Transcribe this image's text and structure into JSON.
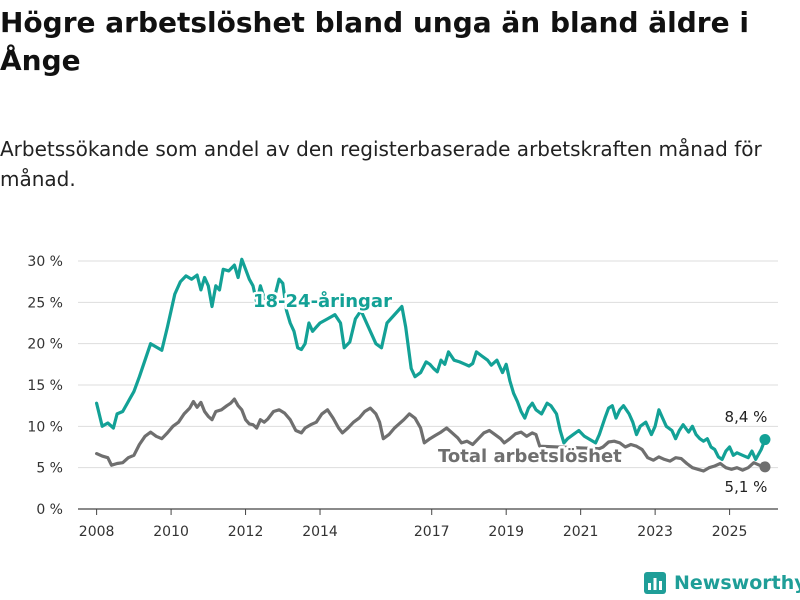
{
  "title": "Högre arbetslöshet bland unga än bland äldre i Ånge",
  "subtitle": "Arbetssökande som andel av den registerbaserade arbetskraften månad för månad.",
  "brand": {
    "name": "Newsworthy",
    "color": "#1f9e98",
    "icon": "bar-chart-logo-icon"
  },
  "chart_data": {
    "type": "line",
    "ylim": [
      0,
      30
    ],
    "xlim": [
      2007.5,
      2026.3
    ],
    "y_ticks": [
      0,
      5,
      10,
      15,
      20,
      25,
      30
    ],
    "y_tick_labels": [
      "0 %",
      "5 %",
      "10 %",
      "15 %",
      "20 %",
      "25 %",
      "30 %"
    ],
    "x_ticks": [
      2008,
      2010,
      2012,
      2014,
      2017,
      2019,
      2021,
      2023,
      2025
    ],
    "x_tick_labels": [
      "2008",
      "2010",
      "2012",
      "2014",
      "2017",
      "2019",
      "2021",
      "2023",
      "2025"
    ],
    "grid": true,
    "series": [
      {
        "name": "18-24-åringar",
        "color": "#13a196",
        "end_label": "8,4 %",
        "points": [
          [
            2008.0,
            12.8
          ],
          [
            2008.15,
            10.0
          ],
          [
            2008.3,
            10.4
          ],
          [
            2008.45,
            9.8
          ],
          [
            2008.55,
            11.5
          ],
          [
            2008.7,
            11.8
          ],
          [
            2008.85,
            13.0
          ],
          [
            2009.0,
            14.2
          ],
          [
            2009.15,
            16.0
          ],
          [
            2009.3,
            18.0
          ],
          [
            2009.45,
            20.0
          ],
          [
            2009.6,
            19.6
          ],
          [
            2009.75,
            19.2
          ],
          [
            2009.9,
            22.0
          ],
          [
            2010.0,
            24.0
          ],
          [
            2010.1,
            26.0
          ],
          [
            2010.25,
            27.5
          ],
          [
            2010.4,
            28.2
          ],
          [
            2010.55,
            27.8
          ],
          [
            2010.7,
            28.3
          ],
          [
            2010.8,
            26.5
          ],
          [
            2010.9,
            28.0
          ],
          [
            2011.0,
            27.0
          ],
          [
            2011.1,
            24.5
          ],
          [
            2011.2,
            27.0
          ],
          [
            2011.3,
            26.5
          ],
          [
            2011.4,
            29.0
          ],
          [
            2011.55,
            28.8
          ],
          [
            2011.7,
            29.5
          ],
          [
            2011.8,
            28.0
          ],
          [
            2011.9,
            30.2
          ],
          [
            2012.0,
            29.0
          ],
          [
            2012.1,
            27.8
          ],
          [
            2012.2,
            27.0
          ],
          [
            2012.3,
            25.0
          ],
          [
            2012.4,
            27.0
          ],
          [
            2012.5,
            25.5
          ],
          [
            2012.6,
            25.7
          ],
          [
            2012.7,
            25.2
          ],
          [
            2012.8,
            26.0
          ],
          [
            2012.9,
            27.8
          ],
          [
            2013.0,
            27.3
          ],
          [
            2013.1,
            24.0
          ],
          [
            2013.2,
            22.5
          ],
          [
            2013.3,
            21.5
          ],
          [
            2013.4,
            19.5
          ],
          [
            2013.5,
            19.3
          ],
          [
            2013.6,
            20.0
          ],
          [
            2013.7,
            22.5
          ],
          [
            2013.8,
            21.5
          ],
          [
            2013.9,
            22.0
          ],
          [
            2014.0,
            22.5
          ],
          [
            2014.2,
            23.0
          ],
          [
            2014.4,
            23.5
          ],
          [
            2014.55,
            22.5
          ],
          [
            2014.65,
            19.5
          ],
          [
            2014.8,
            20.2
          ],
          [
            2014.95,
            23.0
          ],
          [
            2015.1,
            24.0
          ],
          [
            2015.5,
            20.0
          ],
          [
            2015.65,
            19.5
          ],
          [
            2015.8,
            22.5
          ],
          [
            2016.2,
            24.5
          ],
          [
            2016.3,
            22.0
          ],
          [
            2016.45,
            17.0
          ],
          [
            2016.55,
            16.0
          ],
          [
            2016.7,
            16.5
          ],
          [
            2016.85,
            17.8
          ],
          [
            2016.95,
            17.5
          ],
          [
            2017.05,
            17.0
          ],
          [
            2017.15,
            16.6
          ],
          [
            2017.25,
            18.0
          ],
          [
            2017.35,
            17.5
          ],
          [
            2017.45,
            19.0
          ],
          [
            2017.6,
            18.0
          ],
          [
            2017.75,
            17.8
          ],
          [
            2017.9,
            17.5
          ],
          [
            2018.0,
            17.3
          ],
          [
            2018.1,
            17.6
          ],
          [
            2018.2,
            19.0
          ],
          [
            2018.35,
            18.5
          ],
          [
            2018.5,
            18.0
          ],
          [
            2018.6,
            17.4
          ],
          [
            2018.75,
            18.0
          ],
          [
            2018.9,
            16.5
          ],
          [
            2019.0,
            17.5
          ],
          [
            2019.1,
            15.5
          ],
          [
            2019.2,
            14.0
          ],
          [
            2019.3,
            13.0
          ],
          [
            2019.4,
            11.8
          ],
          [
            2019.5,
            11.0
          ],
          [
            2019.6,
            12.2
          ],
          [
            2019.7,
            12.8
          ],
          [
            2019.8,
            12.0
          ],
          [
            2019.95,
            11.5
          ],
          [
            2020.1,
            12.8
          ],
          [
            2020.2,
            12.5
          ],
          [
            2020.35,
            11.5
          ],
          [
            2020.45,
            9.5
          ],
          [
            2020.55,
            8.0
          ],
          [
            2020.65,
            8.5
          ],
          [
            2020.8,
            9.0
          ],
          [
            2020.95,
            9.5
          ],
          [
            2021.1,
            8.8
          ],
          [
            2021.4,
            8.0
          ],
          [
            2021.5,
            9.0
          ],
          [
            2021.65,
            11.0
          ],
          [
            2021.75,
            12.2
          ],
          [
            2021.85,
            12.5
          ],
          [
            2021.95,
            11.0
          ],
          [
            2022.05,
            12.0
          ],
          [
            2022.15,
            12.5
          ],
          [
            2022.3,
            11.5
          ],
          [
            2022.4,
            10.5
          ],
          [
            2022.5,
            9.0
          ],
          [
            2022.6,
            10.0
          ],
          [
            2022.75,
            10.5
          ],
          [
            2022.9,
            9.0
          ],
          [
            2023.0,
            10.0
          ],
          [
            2023.1,
            12.0
          ],
          [
            2023.2,
            11.0
          ],
          [
            2023.3,
            10.0
          ],
          [
            2023.45,
            9.5
          ],
          [
            2023.55,
            8.5
          ],
          [
            2023.65,
            9.5
          ],
          [
            2023.75,
            10.2
          ],
          [
            2023.9,
            9.3
          ],
          [
            2024.0,
            10.0
          ],
          [
            2024.1,
            9.0
          ],
          [
            2024.2,
            8.5
          ],
          [
            2024.3,
            8.2
          ],
          [
            2024.4,
            8.5
          ],
          [
            2024.5,
            7.5
          ],
          [
            2024.6,
            7.2
          ],
          [
            2024.7,
            6.3
          ],
          [
            2024.8,
            6.0
          ],
          [
            2024.9,
            7.0
          ],
          [
            2025.0,
            7.5
          ],
          [
            2025.1,
            6.5
          ],
          [
            2025.2,
            6.8
          ],
          [
            2025.35,
            6.5
          ],
          [
            2025.5,
            6.2
          ],
          [
            2025.6,
            7.0
          ],
          [
            2025.7,
            6.0
          ],
          [
            2025.85,
            7.2
          ],
          [
            2025.95,
            8.4
          ]
        ]
      },
      {
        "name": "Total arbetslöshet",
        "color": "#6f6f6f",
        "end_label": "5,1 %",
        "points": [
          [
            2008.0,
            6.7
          ],
          [
            2008.15,
            6.4
          ],
          [
            2008.3,
            6.2
          ],
          [
            2008.4,
            5.3
          ],
          [
            2008.55,
            5.5
          ],
          [
            2008.7,
            5.6
          ],
          [
            2008.85,
            6.2
          ],
          [
            2009.0,
            6.5
          ],
          [
            2009.15,
            7.8
          ],
          [
            2009.3,
            8.8
          ],
          [
            2009.45,
            9.3
          ],
          [
            2009.6,
            8.8
          ],
          [
            2009.75,
            8.5
          ],
          [
            2009.9,
            9.2
          ],
          [
            2010.05,
            10.0
          ],
          [
            2010.2,
            10.5
          ],
          [
            2010.35,
            11.5
          ],
          [
            2010.5,
            12.2
          ],
          [
            2010.6,
            13.0
          ],
          [
            2010.7,
            12.3
          ],
          [
            2010.8,
            12.9
          ],
          [
            2010.9,
            11.8
          ],
          [
            2011.0,
            11.2
          ],
          [
            2011.1,
            10.8
          ],
          [
            2011.2,
            11.8
          ],
          [
            2011.35,
            12.0
          ],
          [
            2011.5,
            12.5
          ],
          [
            2011.6,
            12.8
          ],
          [
            2011.7,
            13.3
          ],
          [
            2011.8,
            12.5
          ],
          [
            2011.9,
            12.0
          ],
          [
            2012.0,
            10.8
          ],
          [
            2012.1,
            10.3
          ],
          [
            2012.2,
            10.2
          ],
          [
            2012.3,
            9.8
          ],
          [
            2012.4,
            10.8
          ],
          [
            2012.5,
            10.5
          ],
          [
            2012.6,
            10.9
          ],
          [
            2012.75,
            11.8
          ],
          [
            2012.9,
            12.0
          ],
          [
            2013.05,
            11.6
          ],
          [
            2013.2,
            10.8
          ],
          [
            2013.35,
            9.5
          ],
          [
            2013.5,
            9.2
          ],
          [
            2013.6,
            9.8
          ],
          [
            2013.75,
            10.2
          ],
          [
            2013.9,
            10.5
          ],
          [
            2014.05,
            11.5
          ],
          [
            2014.2,
            12.0
          ],
          [
            2014.35,
            11.0
          ],
          [
            2014.5,
            9.8
          ],
          [
            2014.6,
            9.2
          ],
          [
            2014.75,
            9.8
          ],
          [
            2014.9,
            10.5
          ],
          [
            2015.05,
            11.0
          ],
          [
            2015.2,
            11.8
          ],
          [
            2015.35,
            12.2
          ],
          [
            2015.5,
            11.5
          ],
          [
            2015.6,
            10.5
          ],
          [
            2015.7,
            8.5
          ],
          [
            2015.85,
            9.0
          ],
          [
            2016.0,
            9.8
          ],
          [
            2016.1,
            10.2
          ],
          [
            2016.25,
            10.8
          ],
          [
            2016.4,
            11.5
          ],
          [
            2016.55,
            11.0
          ],
          [
            2016.7,
            9.8
          ],
          [
            2016.8,
            8.0
          ],
          [
            2016.95,
            8.5
          ],
          [
            2017.1,
            8.9
          ],
          [
            2017.25,
            9.3
          ],
          [
            2017.4,
            9.8
          ],
          [
            2017.55,
            9.2
          ],
          [
            2017.7,
            8.6
          ],
          [
            2017.8,
            8.0
          ],
          [
            2017.95,
            8.2
          ],
          [
            2018.1,
            7.8
          ],
          [
            2018.25,
            8.5
          ],
          [
            2018.4,
            9.2
          ],
          [
            2018.55,
            9.5
          ],
          [
            2018.7,
            9.0
          ],
          [
            2018.85,
            8.5
          ],
          [
            2018.95,
            8.0
          ],
          [
            2019.1,
            8.5
          ],
          [
            2019.25,
            9.1
          ],
          [
            2019.4,
            9.3
          ],
          [
            2019.55,
            8.8
          ],
          [
            2019.7,
            9.2
          ],
          [
            2019.8,
            9.0
          ],
          [
            2019.9,
            7.6
          ],
          [
            2021.5,
            7.3
          ],
          [
            2021.6,
            7.5
          ],
          [
            2021.75,
            8.1
          ],
          [
            2021.9,
            8.2
          ],
          [
            2022.05,
            8.0
          ],
          [
            2022.2,
            7.5
          ],
          [
            2022.35,
            7.8
          ],
          [
            2022.5,
            7.6
          ],
          [
            2022.65,
            7.2
          ],
          [
            2022.8,
            6.2
          ],
          [
            2022.95,
            5.9
          ],
          [
            2023.1,
            6.3
          ],
          [
            2023.25,
            6.0
          ],
          [
            2023.4,
            5.8
          ],
          [
            2023.55,
            6.2
          ],
          [
            2023.7,
            6.1
          ],
          [
            2023.85,
            5.5
          ],
          [
            2024.0,
            5.0
          ],
          [
            2024.15,
            4.8
          ],
          [
            2024.3,
            4.6
          ],
          [
            2024.45,
            5.0
          ],
          [
            2024.6,
            5.2
          ],
          [
            2024.75,
            5.5
          ],
          [
            2024.9,
            5.0
          ],
          [
            2025.05,
            4.8
          ],
          [
            2025.2,
            5.0
          ],
          [
            2025.35,
            4.7
          ],
          [
            2025.5,
            5.0
          ],
          [
            2025.65,
            5.6
          ],
          [
            2025.8,
            5.3
          ],
          [
            2025.95,
            5.1
          ]
        ]
      }
    ]
  }
}
